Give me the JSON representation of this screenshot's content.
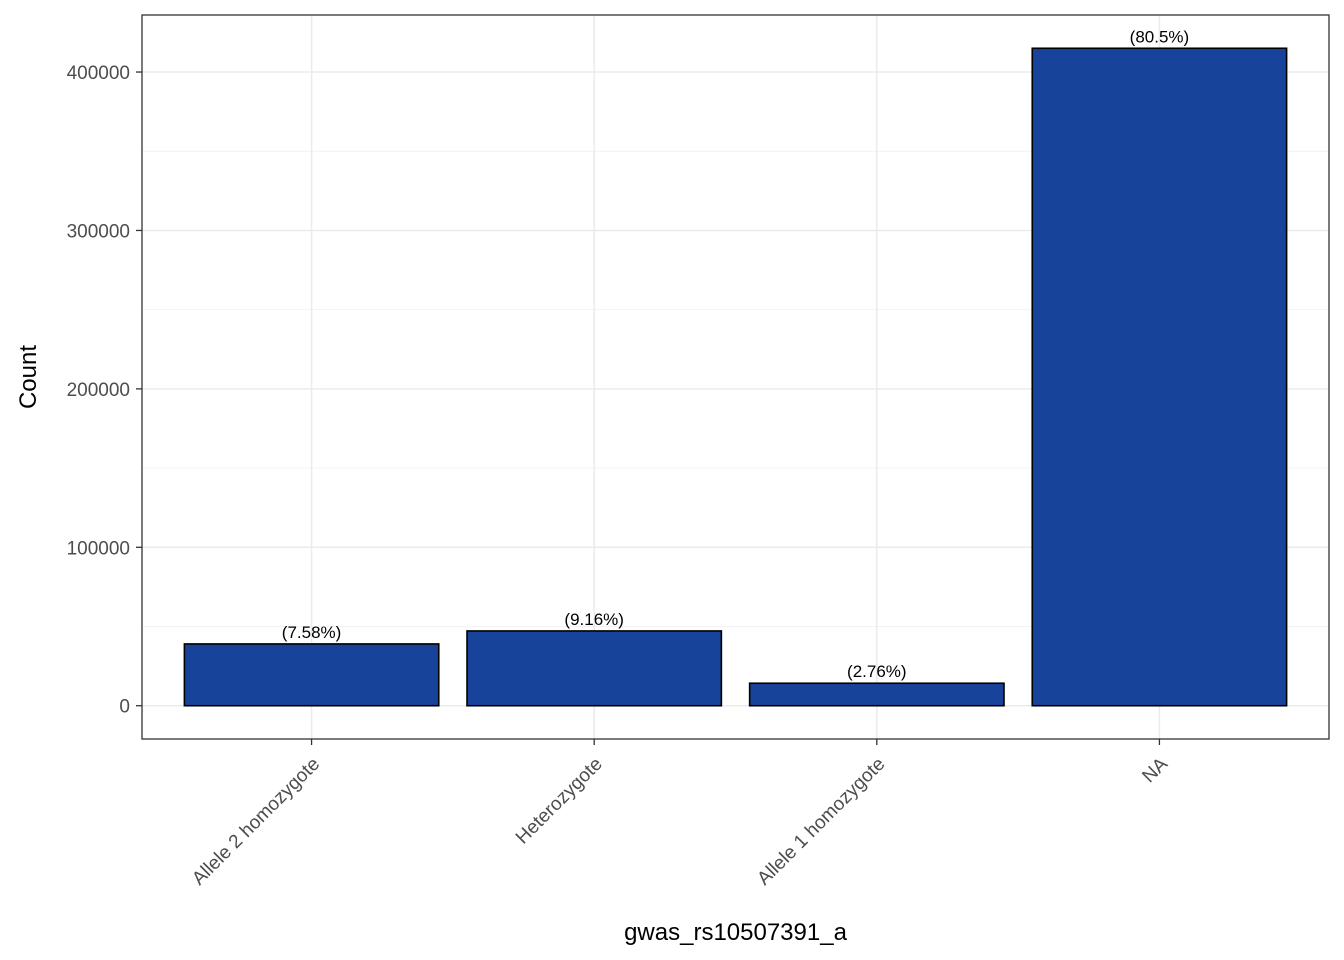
{
  "chart_data": {
    "type": "bar",
    "title": "",
    "xlabel": "gwas_rs10507391_a",
    "ylabel": "Count",
    "categories": [
      "Allele 2 homozygote",
      "Heterozygote",
      "Allele 1 homozygote",
      "NA"
    ],
    "values": [
      39000,
      47200,
      14200,
      415000
    ],
    "labels": [
      "(7.58%)",
      "(9.16%)",
      "(2.76%)",
      "(80.5%)"
    ],
    "ylim": [
      -21000,
      436000
    ],
    "yticks": [
      0,
      100000,
      200000,
      300000,
      400000
    ],
    "ytick_labels": [
      "0",
      "100000",
      "200000",
      "300000",
      "400000"
    ],
    "grid": true,
    "legend": "none",
    "colors": {
      "bar_fill": "#17439B",
      "bar_stroke": "#000000",
      "grid_major": "#EBEBEB",
      "grid_minor": "#F2F2F2",
      "panel_border": "#333333"
    }
  }
}
